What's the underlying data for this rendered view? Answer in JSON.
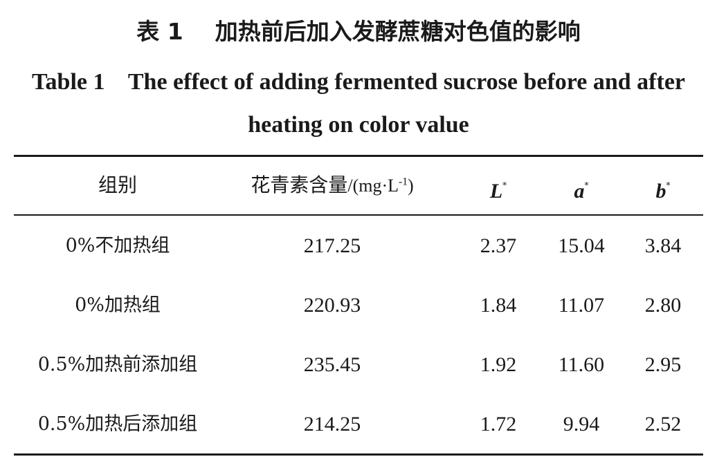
{
  "title": {
    "cn": "表 1    加热前后加入发酵蔗糖对色值的影响",
    "en": "Table 1    The effect of adding fermented sucrose before and after heating on color value"
  },
  "table": {
    "headers": {
      "group": "组别",
      "anthocyanin": "花青素含量",
      "anthocyanin_unit_prefix": "/(mg·L",
      "anthocyanin_unit_exp": "-1",
      "anthocyanin_unit_suffix": ")",
      "L": "L",
      "a": "a",
      "b": "b",
      "star": "*"
    },
    "rows": [
      {
        "group": "0%不加热组",
        "anthocyanin": "217.25",
        "L": "2.37",
        "a": "15.04",
        "b": "3.84"
      },
      {
        "group": "0%加热组",
        "anthocyanin": "220.93",
        "L": "1.84",
        "a": "11.07",
        "b": "2.80"
      },
      {
        "group": "0.5%加热前添加组",
        "anthocyanin": "235.45",
        "L": "1.92",
        "a": "11.60",
        "b": "2.95"
      },
      {
        "group": "0.5%加热后添加组",
        "anthocyanin": "214.25",
        "L": "1.72",
        "a": "9.94",
        "b": "2.52"
      }
    ]
  }
}
